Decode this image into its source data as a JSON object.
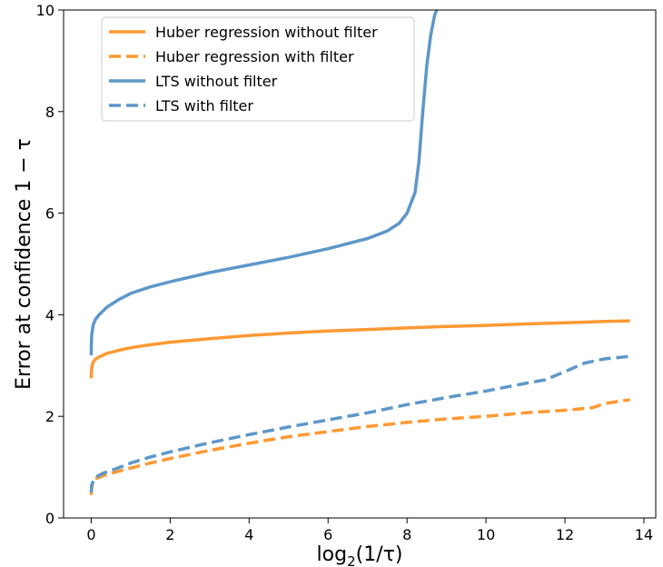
{
  "chart_data": {
    "type": "line",
    "xlabel": "log2(1/τ)",
    "ylabel": "Error at confidence 1 − τ",
    "xlim": [
      -0.7,
      14.3
    ],
    "ylim": [
      0,
      10
    ],
    "xticks": [
      0,
      2,
      4,
      6,
      8,
      10,
      12,
      14
    ],
    "yticks": [
      0,
      2,
      4,
      6,
      8,
      10
    ],
    "grid": false,
    "legend_position": "top-left",
    "series": [
      {
        "name": "Huber regression without filter",
        "color": "#ff9933",
        "dash": "solid",
        "x": [
          0,
          0.01,
          0.05,
          0.1,
          0.2,
          0.4,
          0.7,
          1,
          1.5,
          2,
          3,
          4,
          5,
          6,
          7,
          8,
          9,
          10,
          11,
          12,
          13,
          13.65
        ],
        "y": [
          2.75,
          2.95,
          3.07,
          3.12,
          3.17,
          3.24,
          3.3,
          3.35,
          3.41,
          3.46,
          3.53,
          3.59,
          3.64,
          3.68,
          3.71,
          3.74,
          3.77,
          3.79,
          3.82,
          3.84,
          3.87,
          3.88
        ]
      },
      {
        "name": "Huber regression with filter",
        "color": "#ff9933",
        "dash": "dashed",
        "x": [
          0,
          0.01,
          0.05,
          0.1,
          0.3,
          0.6,
          1,
          1.5,
          2,
          3,
          4,
          5,
          6,
          7,
          8,
          9,
          10,
          11,
          12,
          12.7,
          13,
          13.65
        ],
        "y": [
          0.45,
          0.6,
          0.7,
          0.77,
          0.83,
          0.9,
          0.98,
          1.08,
          1.17,
          1.33,
          1.47,
          1.6,
          1.7,
          1.8,
          1.88,
          1.95,
          2.0,
          2.07,
          2.12,
          2.17,
          2.25,
          2.33
        ]
      },
      {
        "name": "LTS without filter",
        "color": "#5e97c9",
        "dash": "solid",
        "x": [
          0,
          0.01,
          0.05,
          0.1,
          0.2,
          0.4,
          0.7,
          1,
          1.5,
          2,
          3,
          4,
          5,
          6,
          7,
          7.5,
          7.8,
          8.0,
          8.1,
          8.2,
          8.3,
          8.4,
          8.5,
          8.6,
          8.7,
          8.75
        ],
        "y": [
          3.2,
          3.6,
          3.8,
          3.9,
          4.0,
          4.15,
          4.3,
          4.42,
          4.55,
          4.65,
          4.83,
          4.98,
          5.13,
          5.3,
          5.5,
          5.65,
          5.8,
          6.0,
          6.2,
          6.4,
          7.0,
          8.0,
          8.9,
          9.5,
          9.9,
          10.0
        ]
      },
      {
        "name": "LTS with filter",
        "color": "#5e97c9",
        "dash": "dashed",
        "x": [
          0,
          0.01,
          0.05,
          0.1,
          0.3,
          0.6,
          1,
          1.5,
          2,
          3,
          4,
          5,
          6,
          7,
          8,
          9,
          10,
          11,
          11.5,
          12,
          12.5,
          13,
          13.65
        ],
        "y": [
          0.5,
          0.65,
          0.72,
          0.8,
          0.88,
          0.96,
          1.08,
          1.2,
          1.3,
          1.48,
          1.64,
          1.79,
          1.93,
          2.07,
          2.23,
          2.37,
          2.5,
          2.65,
          2.72,
          2.88,
          3.05,
          3.13,
          3.18
        ]
      }
    ]
  }
}
